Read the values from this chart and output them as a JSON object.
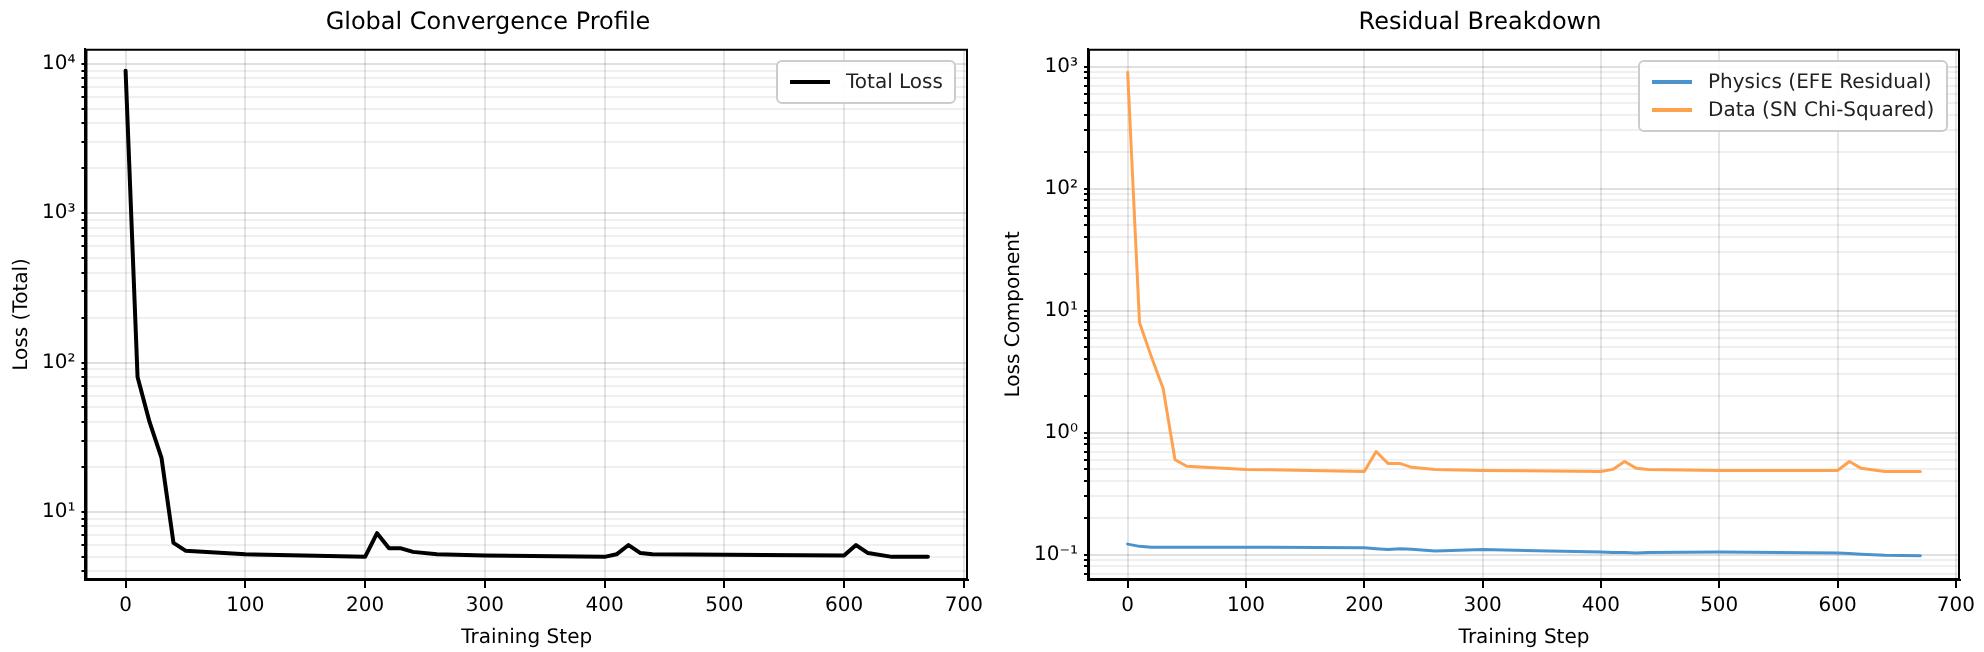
{
  "chart_data": [
    {
      "type": "line",
      "title": "Global Convergence Profile",
      "xlabel": "Training Step",
      "ylabel": "Loss (Total)",
      "x": [
        0,
        10,
        20,
        30,
        40,
        50,
        100,
        200,
        210,
        220,
        230,
        240,
        260,
        300,
        400,
        410,
        420,
        430,
        440,
        600,
        610,
        620,
        640,
        670
      ],
      "series": [
        {
          "name": "Total Loss",
          "color": "#000000",
          "values": [
            9000,
            80,
            40,
            23,
            6.2,
            5.5,
            5.2,
            5.0,
            7.2,
            5.7,
            5.7,
            5.4,
            5.2,
            5.1,
            5.0,
            5.2,
            6.0,
            5.3,
            5.2,
            5.1,
            6.0,
            5.3,
            5.0,
            5.0
          ]
        }
      ],
      "log": "y",
      "xlim": [
        -33.5,
        703.5
      ],
      "ylim": [
        3.5,
        12600
      ],
      "xticks": [
        0,
        100,
        200,
        300,
        400,
        500,
        600,
        700
      ],
      "yticks": [
        {
          "value": 4,
          "label": null
        },
        {
          "value": 5,
          "label": null
        },
        {
          "value": 6,
          "label": null
        },
        {
          "value": 7,
          "label": null
        },
        {
          "value": 8,
          "label": null
        },
        {
          "value": 9,
          "label": null
        },
        {
          "value": 10,
          "label": "10¹"
        },
        {
          "value": 20,
          "label": null
        },
        {
          "value": 30,
          "label": null
        },
        {
          "value": 40,
          "label": null
        },
        {
          "value": 50,
          "label": null
        },
        {
          "value": 60,
          "label": null
        },
        {
          "value": 70,
          "label": null
        },
        {
          "value": 80,
          "label": null
        },
        {
          "value": 90,
          "label": null
        },
        {
          "value": 100,
          "label": "10²"
        },
        {
          "value": 200,
          "label": null
        },
        {
          "value": 300,
          "label": null
        },
        {
          "value": 400,
          "label": null
        },
        {
          "value": 500,
          "label": null
        },
        {
          "value": 600,
          "label": null
        },
        {
          "value": 700,
          "label": null
        },
        {
          "value": 800,
          "label": null
        },
        {
          "value": 900,
          "label": null
        },
        {
          "value": 1000,
          "label": "10³"
        },
        {
          "value": 2000,
          "label": null
        },
        {
          "value": 3000,
          "label": null
        },
        {
          "value": 4000,
          "label": null
        },
        {
          "value": 5000,
          "label": null
        },
        {
          "value": 6000,
          "label": null
        },
        {
          "value": 7000,
          "label": null
        },
        {
          "value": 8000,
          "label": null
        },
        {
          "value": 9000,
          "label": null
        },
        {
          "value": 10000,
          "label": "10⁴"
        }
      ],
      "grid": true,
      "legend": "top right",
      "marker": "none",
      "line_style": "solid"
    },
    {
      "type": "line",
      "title": "Residual Breakdown",
      "xlabel": "Training Step",
      "ylabel": "Loss Component",
      "x": [
        0,
        10,
        20,
        30,
        40,
        50,
        100,
        200,
        210,
        220,
        230,
        240,
        260,
        300,
        400,
        410,
        420,
        430,
        440,
        500,
        600,
        610,
        620,
        640,
        670
      ],
      "series": [
        {
          "name": "Physics (EFE Residual)",
          "color": "#4c93cc",
          "values": [
            0.122,
            0.117,
            0.115,
            0.115,
            0.115,
            0.115,
            0.115,
            0.114,
            0.112,
            0.11,
            0.112,
            0.111,
            0.107,
            0.11,
            0.105,
            0.104,
            0.104,
            0.103,
            0.104,
            0.105,
            0.103,
            0.102,
            0.101,
            0.099,
            0.098
          ]
        },
        {
          "name": "Data (SN Chi-Squared)",
          "color": "#ffa24f",
          "values": [
            900,
            8,
            4.2,
            2.3,
            0.6,
            0.53,
            0.5,
            0.48,
            0.7,
            0.56,
            0.56,
            0.52,
            0.5,
            0.49,
            0.48,
            0.5,
            0.58,
            0.51,
            0.5,
            0.49,
            0.49,
            0.58,
            0.51,
            0.48,
            0.48
          ]
        }
      ],
      "log": "y",
      "xlim": [
        -33.5,
        703.5
      ],
      "ylim": [
        0.062,
        1400
      ],
      "xticks": [
        0,
        100,
        200,
        300,
        400,
        500,
        600,
        700
      ],
      "yticks": [
        {
          "value": 0.07,
          "label": null
        },
        {
          "value": 0.08,
          "label": null
        },
        {
          "value": 0.09,
          "label": null
        },
        {
          "value": 0.1,
          "label": "10⁻¹"
        },
        {
          "value": 0.2,
          "label": null
        },
        {
          "value": 0.3,
          "label": null
        },
        {
          "value": 0.4,
          "label": null
        },
        {
          "value": 0.5,
          "label": null
        },
        {
          "value": 0.6,
          "label": null
        },
        {
          "value": 0.7,
          "label": null
        },
        {
          "value": 0.8,
          "label": null
        },
        {
          "value": 0.9,
          "label": null
        },
        {
          "value": 1,
          "label": "10⁰"
        },
        {
          "value": 2,
          "label": null
        },
        {
          "value": 3,
          "label": null
        },
        {
          "value": 4,
          "label": null
        },
        {
          "value": 5,
          "label": null
        },
        {
          "value": 6,
          "label": null
        },
        {
          "value": 7,
          "label": null
        },
        {
          "value": 8,
          "label": null
        },
        {
          "value": 9,
          "label": null
        },
        {
          "value": 10,
          "label": "10¹"
        },
        {
          "value": 20,
          "label": null
        },
        {
          "value": 30,
          "label": null
        },
        {
          "value": 40,
          "label": null
        },
        {
          "value": 50,
          "label": null
        },
        {
          "value": 60,
          "label": null
        },
        {
          "value": 70,
          "label": null
        },
        {
          "value": 80,
          "label": null
        },
        {
          "value": 90,
          "label": null
        },
        {
          "value": 100,
          "label": "10²"
        },
        {
          "value": 200,
          "label": null
        },
        {
          "value": 300,
          "label": null
        },
        {
          "value": 400,
          "label": null
        },
        {
          "value": 500,
          "label": null
        },
        {
          "value": 600,
          "label": null
        },
        {
          "value": 700,
          "label": null
        },
        {
          "value": 800,
          "label": null
        },
        {
          "value": 900,
          "label": null
        },
        {
          "value": 1000,
          "label": "10³"
        }
      ],
      "grid": true,
      "legend": "top right",
      "marker": "none",
      "line_style": "solid"
    }
  ]
}
